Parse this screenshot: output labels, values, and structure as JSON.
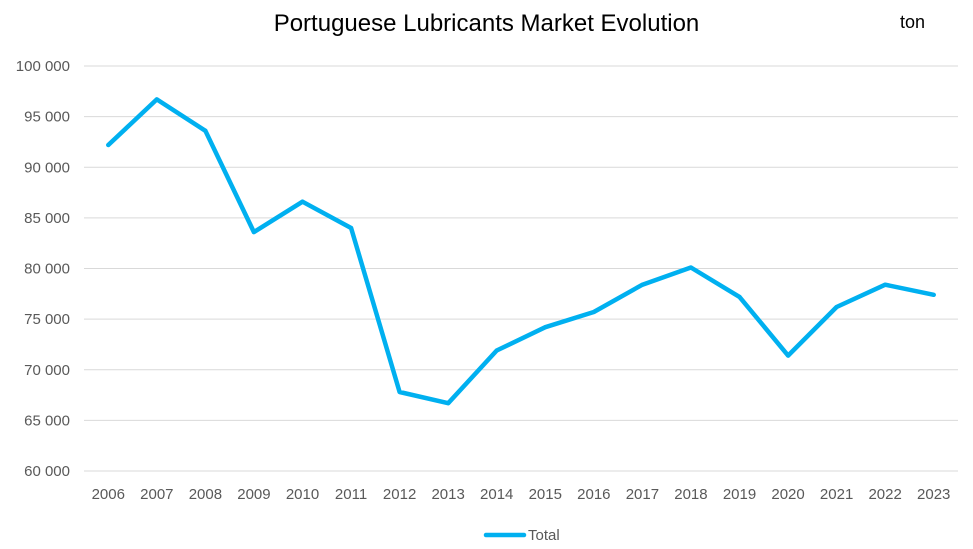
{
  "chart_data": {
    "type": "line",
    "title": "Portuguese Lubricants Market Evolution",
    "unit_label": "ton",
    "categories": [
      "2006",
      "2007",
      "2008",
      "2009",
      "2010",
      "2011",
      "2012",
      "2013",
      "2014",
      "2015",
      "2016",
      "2017",
      "2018",
      "2019",
      "2020",
      "2021",
      "2022",
      "2023"
    ],
    "series": [
      {
        "name": "Total",
        "color": "#00B0F0",
        "values": [
          92200,
          96700,
          93600,
          83600,
          86600,
          84000,
          67800,
          66700,
          71900,
          74200,
          75700,
          78400,
          80100,
          77200,
          71400,
          76200,
          78400,
          77400
        ]
      }
    ],
    "ylim": [
      60000,
      100000
    ],
    "yticks": [
      60000,
      65000,
      70000,
      75000,
      80000,
      85000,
      90000,
      95000,
      100000
    ],
    "ytick_labels": [
      "60 000",
      "65 000",
      "70 000",
      "75 000",
      "80 000",
      "85 000",
      "90 000",
      "95 000",
      "100 000"
    ],
    "grid": true,
    "legend_position": "bottom",
    "xlabel": "",
    "ylabel": ""
  }
}
